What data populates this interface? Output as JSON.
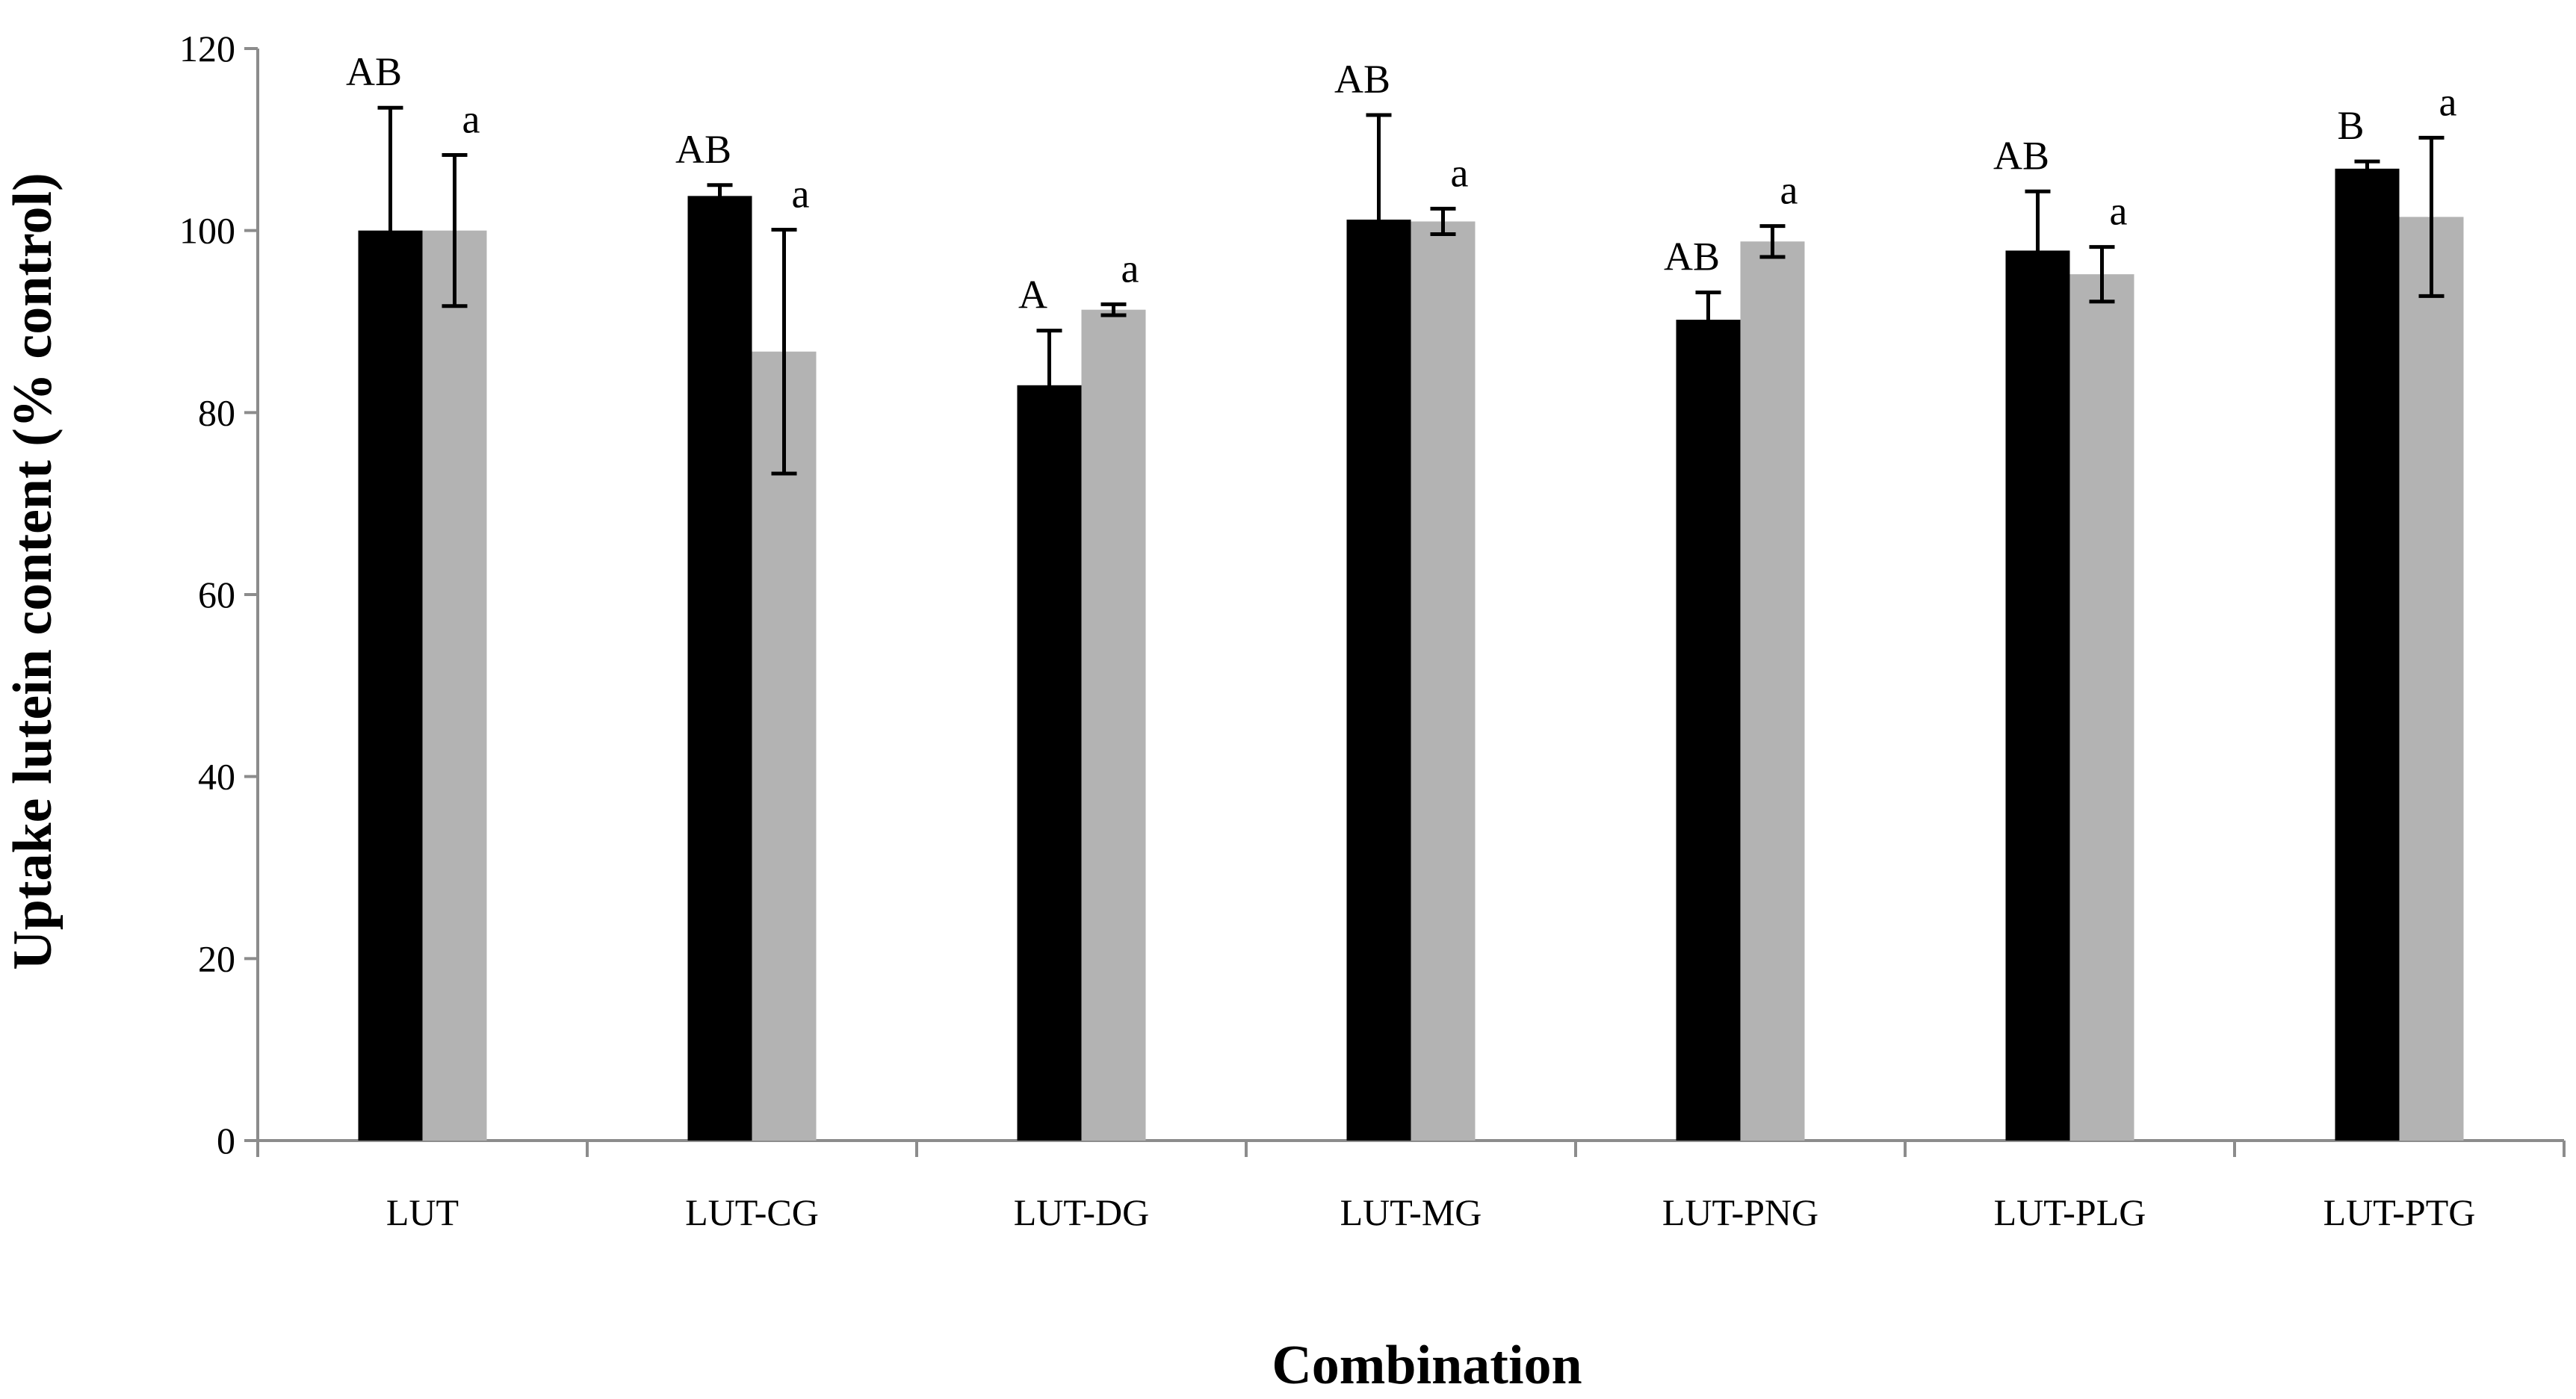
{
  "chart_data": {
    "type": "bar",
    "title": "",
    "xlabel": "Combination",
    "ylabel": "Uptake lutein content (% control)",
    "ylim": [
      0,
      120
    ],
    "yticks": [
      0,
      20,
      40,
      60,
      80,
      100,
      120
    ],
    "grid": false,
    "categories": [
      "LUT",
      "LUT-CG",
      "LUT-DG",
      "LUT-MG",
      "LUT-PNG",
      "LUT-PLG",
      "LUT-PTG"
    ],
    "series": [
      {
        "name": "series-1",
        "color": "#000000",
        "values": [
          100,
          103.8,
          83,
          101.2,
          90.2,
          97.8,
          106.8
        ],
        "errors": [
          13.5,
          1.2,
          6,
          11.5,
          3,
          6.5,
          0.8
        ],
        "labels": [
          "AB",
          "AB",
          "A",
          "AB",
          "AB",
          "AB",
          "B"
        ]
      },
      {
        "name": "series-2",
        "color": "#b3b3b3",
        "values": [
          100,
          86.7,
          91.3,
          101,
          98.8,
          95.2,
          101.5
        ],
        "errors": [
          8.3,
          13.4,
          0.6,
          1.4,
          1.7,
          3,
          8.7
        ],
        "labels": [
          "a",
          "a",
          "a",
          "a",
          "a",
          "a",
          "a"
        ]
      }
    ]
  }
}
